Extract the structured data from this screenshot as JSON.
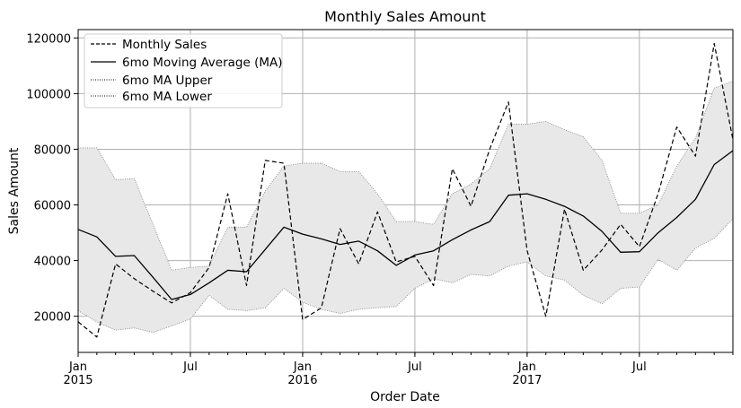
{
  "chart_data": {
    "type": "line",
    "title": "Monthly Sales Amount",
    "xlabel": "Order Date",
    "ylabel": "Sales Amount",
    "ylim": [
      7000,
      123000
    ],
    "xlim": [
      "2015-01",
      "2017-12"
    ],
    "grid": true,
    "legend_position": "top-left",
    "y_ticks": [
      20000,
      40000,
      60000,
      80000,
      100000,
      120000
    ],
    "x_ticks": [
      {
        "month": "2015-01",
        "label": "Jan",
        "year": "2015"
      },
      {
        "month": "2015-07",
        "label": "Jul",
        "year": ""
      },
      {
        "month": "2016-01",
        "label": "Jan",
        "year": "2016"
      },
      {
        "month": "2016-07",
        "label": "Jul",
        "year": ""
      },
      {
        "month": "2017-01",
        "label": "Jan",
        "year": "2017"
      },
      {
        "month": "2017-07",
        "label": "Jul",
        "year": ""
      }
    ],
    "x": [
      "2015-01",
      "2015-02",
      "2015-03",
      "2015-04",
      "2015-05",
      "2015-06",
      "2015-07",
      "2015-08",
      "2015-09",
      "2015-10",
      "2015-11",
      "2015-12",
      "2016-01",
      "2016-02",
      "2016-03",
      "2016-04",
      "2016-05",
      "2016-06",
      "2016-07",
      "2016-08",
      "2016-09",
      "2016-10",
      "2016-11",
      "2016-12",
      "2017-01",
      "2017-02",
      "2017-03",
      "2017-04",
      "2017-05",
      "2017-06",
      "2017-07",
      "2017-08",
      "2017-09",
      "2017-10",
      "2017-11",
      "2017-12"
    ],
    "series": [
      {
        "name": "Monthly Sales",
        "style": "dashed",
        "values": [
          18000,
          12500,
          38800,
          33500,
          29000,
          24800,
          28500,
          37500,
          64000,
          31000,
          76000,
          75000,
          18800,
          23000,
          51500,
          38800,
          57500,
          39500,
          41500,
          31000,
          73000,
          59500,
          80000,
          97000,
          43500,
          20000,
          58500,
          36500,
          43800,
          53000,
          45000,
          64000,
          88000,
          77500,
          118000,
          83500
        ]
      },
      {
        "name": "6mo Moving Average (MA)",
        "style": "solid",
        "values": [
          51200,
          48500,
          41500,
          41800,
          34000,
          26000,
          27800,
          32000,
          36500,
          36000,
          44000,
          52000,
          49500,
          47800,
          45800,
          47000,
          43500,
          38300,
          42000,
          43500,
          47500,
          51000,
          54000,
          63500,
          64000,
          62000,
          59500,
          56000,
          50500,
          43000,
          43200,
          50000,
          55500,
          62000,
          74500,
          79500
        ]
      },
      {
        "name": "6mo MA Upper",
        "style": "dotted",
        "values": [
          80500,
          80500,
          69000,
          69500,
          53000,
          36500,
          37500,
          38000,
          52000,
          52000,
          65000,
          74000,
          75000,
          75000,
          72000,
          72000,
          64000,
          54000,
          54000,
          53000,
          64000,
          67500,
          73000,
          89000,
          89000,
          90000,
          87000,
          84500,
          76000,
          57000,
          57000,
          60000,
          74000,
          84000,
          102000,
          104500
        ]
      },
      {
        "name": "6mo MA Lower",
        "style": "dotted",
        "values": [
          22000,
          18000,
          15000,
          15800,
          14200,
          16500,
          19000,
          27500,
          22500,
          22000,
          23000,
          30000,
          25000,
          22500,
          21000,
          22500,
          23000,
          23500,
          30000,
          33500,
          32000,
          35000,
          34500,
          38000,
          39500,
          34500,
          33000,
          27500,
          24500,
          30000,
          30500,
          40500,
          36500,
          44500,
          48000,
          55000
        ]
      }
    ]
  }
}
